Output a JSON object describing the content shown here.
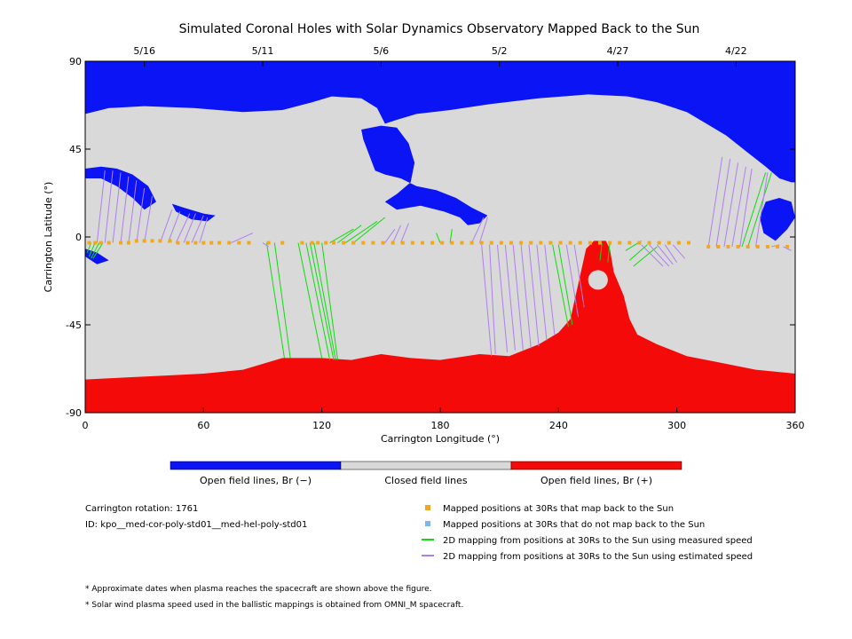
{
  "chart_data": {
    "type": "map",
    "title": "Simulated Coronal Holes with Solar Dynamics Observatory Mapped Back to the Sun",
    "xlabel": "Carrington Longitude (°)",
    "ylabel": "Carrington Latitude (°)",
    "xlim": [
      0,
      360
    ],
    "ylim": [
      -90,
      90
    ],
    "x_ticks": [
      0,
      60,
      120,
      180,
      240,
      300,
      360
    ],
    "y_ticks": [
      {
        "value": 90,
        "label": "90"
      },
      {
        "value": 45,
        "label": "45"
      },
      {
        "value": 0,
        "label": "0"
      },
      {
        "value": -45,
        "label": "-45"
      },
      {
        "value": -90,
        "label": "-90"
      }
    ],
    "date_ticks": [
      {
        "lon": 30,
        "label": "5/16"
      },
      {
        "lon": 90,
        "label": "5/11"
      },
      {
        "lon": 150,
        "label": "5/6"
      },
      {
        "lon": 210,
        "label": "5/2"
      },
      {
        "lon": 270,
        "label": "4/27"
      },
      {
        "lon": 330,
        "label": "4/22"
      }
    ],
    "regions": {
      "closed_color": "#d9d9d9",
      "negative_color": "#0a14f5",
      "positive_color": "#f50a0a",
      "negative_north_boundary": [
        [
          0,
          63
        ],
        [
          12,
          66
        ],
        [
          30,
          67
        ],
        [
          55,
          66
        ],
        [
          80,
          64
        ],
        [
          100,
          65
        ],
        [
          115,
          69
        ],
        [
          125,
          72
        ],
        [
          140,
          71
        ],
        [
          148,
          66
        ],
        [
          152,
          58
        ],
        [
          158,
          60
        ],
        [
          168,
          63
        ],
        [
          185,
          65
        ],
        [
          205,
          68
        ],
        [
          230,
          71
        ],
        [
          255,
          73
        ],
        [
          275,
          72
        ],
        [
          290,
          69
        ],
        [
          305,
          64
        ],
        [
          315,
          58
        ],
        [
          325,
          52
        ],
        [
          335,
          44
        ],
        [
          345,
          36
        ],
        [
          352,
          30
        ],
        [
          358,
          28
        ],
        [
          360,
          28
        ]
      ],
      "negative_islands": [
        {
          "name": "central",
          "points": [
            [
              140,
              55
            ],
            [
              150,
              57
            ],
            [
              158,
              56
            ],
            [
              164,
              48
            ],
            [
              167,
              38
            ],
            [
              165,
              28
            ],
            [
              158,
              22
            ],
            [
              152,
              18
            ],
            [
              158,
              14
            ],
            [
              170,
              16
            ],
            [
              182,
              13
            ],
            [
              190,
              10
            ],
            [
              194,
              6
            ],
            [
              200,
              7
            ],
            [
              204,
              11
            ],
            [
              196,
              15
            ],
            [
              188,
              20
            ],
            [
              178,
              24
            ],
            [
              168,
              26
            ],
            [
              160,
              30
            ],
            [
              152,
              32
            ],
            [
              147,
              34
            ],
            [
              144,
              42
            ],
            [
              141,
              50
            ]
          ]
        },
        {
          "name": "west-patch",
          "points": [
            [
              44,
              17
            ],
            [
              50,
              15
            ],
            [
              60,
              12
            ],
            [
              66,
              11
            ],
            [
              62,
              8
            ],
            [
              54,
              9
            ],
            [
              46,
              13
            ]
          ]
        },
        {
          "name": "west-ribbon",
          "points": [
            [
              0,
              35
            ],
            [
              8,
              36
            ],
            [
              16,
              35
            ],
            [
              24,
              32
            ],
            [
              32,
              26
            ],
            [
              36,
              18
            ],
            [
              30,
              14
            ],
            [
              24,
              20
            ],
            [
              16,
              26
            ],
            [
              8,
              30
            ],
            [
              0,
              30
            ]
          ]
        },
        {
          "name": "west-strip",
          "points": [
            [
              0,
              -6
            ],
            [
              6,
              -8
            ],
            [
              12,
              -12
            ],
            [
              6,
              -14
            ],
            [
              0,
              -10
            ]
          ]
        },
        {
          "name": "east-limb",
          "points": [
            [
              345,
              18
            ],
            [
              352,
              20
            ],
            [
              358,
              18
            ],
            [
              360,
              10
            ],
            [
              356,
              4
            ],
            [
              350,
              -2
            ],
            [
              344,
              2
            ],
            [
              342,
              10
            ]
          ]
        }
      ],
      "positive_south_boundary": [
        [
          0,
          -73
        ],
        [
          20,
          -72
        ],
        [
          40,
          -71
        ],
        [
          60,
          -70
        ],
        [
          80,
          -68
        ],
        [
          100,
          -62
        ],
        [
          120,
          -62
        ],
        [
          135,
          -63
        ],
        [
          150,
          -60
        ],
        [
          165,
          -62
        ],
        [
          180,
          -63
        ],
        [
          200,
          -60
        ],
        [
          215,
          -61
        ],
        [
          230,
          -55
        ],
        [
          240,
          -49
        ],
        [
          246,
          -42
        ],
        [
          250,
          -24
        ],
        [
          254,
          -6
        ],
        [
          258,
          -2
        ],
        [
          264,
          -2
        ],
        [
          266,
          -6
        ],
        [
          268,
          -18
        ],
        [
          273,
          -30
        ],
        [
          276,
          -42
        ],
        [
          280,
          -50
        ],
        [
          290,
          -55
        ],
        [
          305,
          -61
        ],
        [
          320,
          -64
        ],
        [
          340,
          -68
        ],
        [
          360,
          -70
        ]
      ],
      "positive_hole": {
        "lon": 260,
        "lat": -22,
        "r_lon": 5,
        "r_lat": 5
      }
    },
    "series": [
      {
        "name": "Mapped positions at 30Rs that map back to the Sun",
        "color": "#f2a81d",
        "type": "points",
        "lon": [
          2,
          5,
          8,
          12,
          18,
          22,
          26,
          30,
          34,
          38,
          43,
          47,
          52,
          56,
          60,
          64,
          68,
          73,
          78,
          83,
          93,
          100,
          110,
          115,
          118,
          122,
          126,
          131,
          136,
          141,
          146,
          151,
          156,
          161,
          166,
          171,
          176,
          181,
          186,
          191,
          196,
          201,
          206,
          211,
          216,
          221,
          226,
          231,
          236,
          241,
          246,
          251,
          256,
          261,
          266,
          271,
          276,
          281,
          286,
          291,
          296,
          301,
          306,
          316,
          321,
          326,
          331,
          336,
          341,
          346,
          351,
          356
        ],
        "lat": [
          -3,
          -3,
          -3,
          -3,
          -3,
          -3,
          -2,
          -2,
          -2,
          -2,
          -2,
          -3,
          -3,
          -3,
          -3,
          -3,
          -3,
          -3,
          -3,
          -3,
          -3,
          -3,
          -3,
          -3,
          -3,
          -3,
          -3,
          -3,
          -3,
          -3,
          -3,
          -3,
          -3,
          -3,
          -3,
          -3,
          -3,
          -3,
          -3,
          -3,
          -3,
          -3,
          -3,
          -3,
          -3,
          -3,
          -3,
          -3,
          -3,
          -3,
          -3,
          -3,
          -3,
          -3,
          -3,
          -3,
          -3,
          -3,
          -3,
          -3,
          -3,
          -3,
          -3,
          -5,
          -5,
          -5,
          -5,
          -5,
          -5,
          -5,
          -5,
          -5
        ]
      },
      {
        "name": "Mapped positions at 30Rs that do not map back to the Sun",
        "color": "#7cb8ee",
        "type": "points",
        "lon": [],
        "lat": []
      },
      {
        "name": "2D mapping from positions at 30Rs to the Sun using measured speed",
        "color": "#0ddc0d",
        "type": "segments",
        "segments": [
          [
            3,
            -3,
            1,
            -8
          ],
          [
            5,
            -3,
            2,
            -10
          ],
          [
            7,
            -3,
            3,
            -11
          ],
          [
            9,
            -3,
            4,
            -11
          ],
          [
            92,
            -3,
            101,
            -62
          ],
          [
            96,
            -3,
            104,
            -62
          ],
          [
            108,
            -3,
            120,
            -62
          ],
          [
            112,
            -3,
            124,
            -63
          ],
          [
            114,
            -3,
            126,
            -63
          ],
          [
            116,
            -3,
            127,
            -63
          ],
          [
            120,
            -3,
            128,
            -63
          ],
          [
            124,
            -3,
            136,
            4
          ],
          [
            128,
            -3,
            140,
            6
          ],
          [
            132,
            -3,
            148,
            8
          ],
          [
            136,
            -3,
            152,
            10
          ],
          [
            180,
            -3,
            178,
            2
          ],
          [
            185,
            -3,
            186,
            4
          ],
          [
            237,
            -4,
            245,
            -46
          ],
          [
            240,
            -4,
            247,
            -45
          ],
          [
            262,
            -3,
            261,
            -12
          ],
          [
            266,
            -3,
            265,
            -13
          ],
          [
            274,
            -7,
            282,
            -2
          ],
          [
            276,
            -12,
            285,
            -4
          ],
          [
            278,
            -15,
            290,
            -5
          ],
          [
            333,
            -5,
            345,
            33
          ],
          [
            336,
            -5,
            348,
            33
          ]
        ]
      },
      {
        "name": "2D mapping from positions at 30Rs to the Sun using estimated speed",
        "color": "#b07ef0",
        "type": "segments",
        "segments": [
          [
            6,
            -3,
            10,
            34
          ],
          [
            10,
            -3,
            14,
            34
          ],
          [
            14,
            -3,
            18,
            33
          ],
          [
            18,
            -3,
            22,
            31
          ],
          [
            22,
            -3,
            26,
            29
          ],
          [
            26,
            -3,
            30,
            25
          ],
          [
            30,
            -3,
            34,
            21
          ],
          [
            38,
            -3,
            44,
            14
          ],
          [
            42,
            -3,
            48,
            13
          ],
          [
            46,
            -3,
            53,
            12
          ],
          [
            50,
            -3,
            56,
            12
          ],
          [
            54,
            -3,
            60,
            11
          ],
          [
            58,
            -3,
            62,
            10
          ],
          [
            74,
            -3,
            85,
            2
          ],
          [
            90,
            -3,
            93,
            -5
          ],
          [
            152,
            -3,
            157,
            4
          ],
          [
            156,
            -3,
            160,
            6
          ],
          [
            160,
            -3,
            164,
            7
          ],
          [
            196,
            -3,
            202,
            10
          ],
          [
            200,
            -3,
            204,
            10
          ],
          [
            201,
            -4,
            206,
            -61
          ],
          [
            205,
            -4,
            208,
            -60
          ],
          [
            209,
            -4,
            214,
            -59
          ],
          [
            213,
            -4,
            218,
            -58
          ],
          [
            217,
            -4,
            222,
            -58
          ],
          [
            221,
            -4,
            226,
            -57
          ],
          [
            225,
            -4,
            230,
            -56
          ],
          [
            229,
            -4,
            234,
            -53
          ],
          [
            233,
            -4,
            238,
            -50
          ],
          [
            244,
            -4,
            250,
            -41
          ],
          [
            248,
            -4,
            253,
            -36
          ],
          [
            282,
            -4,
            293,
            -15
          ],
          [
            286,
            -4,
            296,
            -15
          ],
          [
            290,
            -4,
            298,
            -14
          ],
          [
            294,
            -4,
            300,
            -13
          ],
          [
            298,
            -4,
            304,
            -11
          ],
          [
            316,
            -5,
            323,
            41
          ],
          [
            320,
            -5,
            327,
            40
          ],
          [
            324,
            -5,
            331,
            38
          ],
          [
            328,
            -5,
            335,
            36
          ],
          [
            332,
            -5,
            338,
            35
          ],
          [
            340,
            -5,
            346,
            33
          ],
          [
            348,
            -5,
            352,
            -4
          ],
          [
            354,
            -5,
            358,
            -7
          ]
        ]
      }
    ]
  },
  "colorbar": {
    "segments": [
      {
        "color": "#0a14f5",
        "label": "Open field lines, Br (−)"
      },
      {
        "color": "#d9d9d9",
        "label": "Closed field lines"
      },
      {
        "color": "#f50a0a",
        "label": "Open field lines, Br (+)"
      }
    ]
  },
  "info": {
    "rotation": "Carrington rotation: 1761",
    "id": "ID: kpo__med-cor-poly-std01__med-hel-poly-std01"
  },
  "legend_items": [
    {
      "kind": "square",
      "color": "#f2a81d",
      "text": "Mapped positions at 30Rs that map back to the Sun"
    },
    {
      "kind": "square",
      "color": "#7cb8ee",
      "text": "Mapped positions at 30Rs that do not map back to the Sun"
    },
    {
      "kind": "line",
      "color": "#0ddc0d",
      "text": "2D mapping from positions at 30Rs to the Sun using measured speed"
    },
    {
      "kind": "line",
      "color": "#b07ef0",
      "text": "2D mapping from positions at 30Rs to the Sun using estimated speed"
    }
  ],
  "notes": [
    "* Approximate dates when plasma reaches the spacecraft are shown above the figure.",
    "* Solar wind plasma speed used in the ballistic mappings is obtained from OMNI_M spacecraft."
  ]
}
